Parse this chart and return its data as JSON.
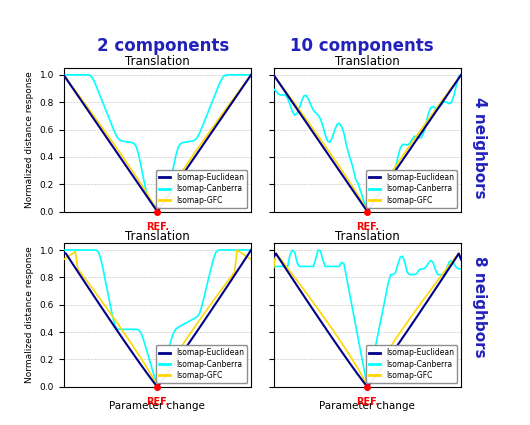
{
  "col_titles": [
    "2 components",
    "10 components"
  ],
  "row_labels": [
    "4 neighbors",
    "8 neighbors"
  ],
  "subplot_title": "Translation",
  "xlabel": "Parameter change",
  "ylabel": "Normalized distance response",
  "ref_label": "REF.",
  "legend_entries": [
    "Isomap-Euclidean",
    "Isomap-Canberra",
    "Isomap-GFC"
  ],
  "colors": {
    "euclidean": "#00008B",
    "canberra": "#00FFFF",
    "gfc": "#FFD700"
  },
  "col_title_color": "#2222BB",
  "row_label_color": "#2222BB",
  "ref_color": "#FF0000",
  "background": "#FFFFFF",
  "n_points": 81
}
